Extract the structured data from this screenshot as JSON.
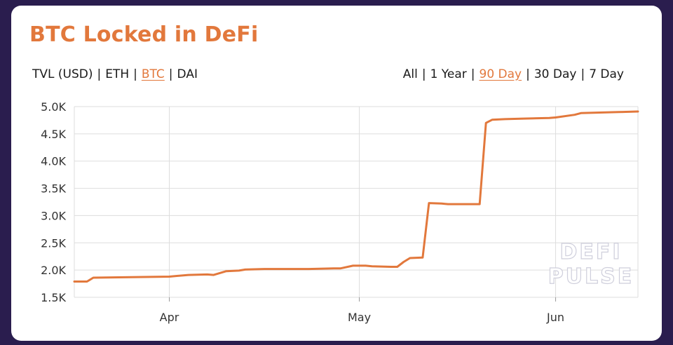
{
  "title": "BTC Locked in DeFi",
  "metric_options": [
    {
      "label": "TVL (USD)",
      "active": false
    },
    {
      "label": "ETH",
      "active": false
    },
    {
      "label": "BTC",
      "active": true
    },
    {
      "label": "DAI",
      "active": false
    }
  ],
  "range_options": [
    {
      "label": "All",
      "active": false
    },
    {
      "label": "1 Year",
      "active": false
    },
    {
      "label": "90 Day",
      "active": true
    },
    {
      "label": "30 Day",
      "active": false
    },
    {
      "label": "7 Day",
      "active": false
    }
  ],
  "watermark": [
    "DEFI",
    "PULSE"
  ],
  "colors": {
    "accent": "#e2783c",
    "grid": "#dddddd",
    "background": "#2a1d4e"
  },
  "chart_data": {
    "type": "line",
    "title": "BTC Locked in DeFi",
    "xlabel": "",
    "ylabel": "",
    "ylim": [
      1500,
      5000
    ],
    "xlim": [
      "2020-03-17",
      "2020-06-14"
    ],
    "yticks": [
      {
        "value": 1500,
        "label": "1.5K"
      },
      {
        "value": 2000,
        "label": "2.0K"
      },
      {
        "value": 2500,
        "label": "2.5K"
      },
      {
        "value": 3000,
        "label": "3.0K"
      },
      {
        "value": 3500,
        "label": "3.5K"
      },
      {
        "value": 4000,
        "label": "4.0K"
      },
      {
        "value": 4500,
        "label": "4.5K"
      },
      {
        "value": 5000,
        "label": "5.0K"
      }
    ],
    "xticks": [
      {
        "date": "2020-04-01",
        "label": "Apr"
      },
      {
        "date": "2020-05-01",
        "label": "May"
      },
      {
        "date": "2020-06-01",
        "label": "Jun"
      }
    ],
    "grid": true,
    "legend": "none",
    "series": [
      {
        "x": [
          "2020-03-17",
          "2020-03-19",
          "2020-03-20",
          "2020-03-23",
          "2020-03-26",
          "2020-03-29",
          "2020-04-01",
          "2020-04-04",
          "2020-04-07",
          "2020-04-08",
          "2020-04-10",
          "2020-04-12",
          "2020-04-13",
          "2020-04-16",
          "2020-04-20",
          "2020-04-23",
          "2020-04-27",
          "2020-04-28",
          "2020-04-30",
          "2020-05-02",
          "2020-05-03",
          "2020-05-06",
          "2020-05-07",
          "2020-05-08",
          "2020-05-09",
          "2020-05-11",
          "2020-05-12",
          "2020-05-14",
          "2020-05-15",
          "2020-05-20",
          "2020-05-21",
          "2020-05-22",
          "2020-05-24",
          "2020-05-27",
          "2020-05-31",
          "2020-06-01",
          "2020-06-04",
          "2020-06-05",
          "2020-06-11",
          "2020-06-14"
        ],
        "values": [
          1790,
          1790,
          1860,
          1865,
          1870,
          1875,
          1880,
          1910,
          1920,
          1910,
          1980,
          1990,
          2010,
          2020,
          2020,
          2020,
          2030,
          2030,
          2080,
          2080,
          2070,
          2060,
          2060,
          2150,
          2220,
          2230,
          3230,
          3220,
          3210,
          3210,
          4700,
          4760,
          4770,
          4780,
          4790,
          4800,
          4850,
          4880,
          4900,
          4910
        ]
      }
    ]
  }
}
